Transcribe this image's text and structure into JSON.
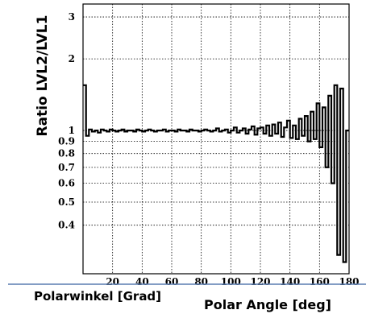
{
  "chart_data": {
    "type": "line",
    "title": "",
    "ylabel": "Ratio LVL2/LVL1",
    "xlabel_de": "Polarwinkel [Grad]",
    "xlabel_en": "Polar Angle [deg]",
    "xlim": [
      0,
      180
    ],
    "ylim": [
      0.25,
      3.4
    ],
    "y_scale": "log",
    "grid": true,
    "x_ticks": [
      20,
      40,
      60,
      80,
      100,
      120,
      140,
      160,
      180
    ],
    "y_ticks": [
      {
        "value": 3,
        "label": "3"
      },
      {
        "value": 2,
        "label": "2"
      },
      {
        "value": 1,
        "label": "1"
      },
      {
        "value": 0.9,
        "label": "0.9"
      },
      {
        "value": 0.8,
        "label": "0.8"
      },
      {
        "value": 0.7,
        "label": "0.7"
      },
      {
        "value": 0.6,
        "label": "0.6"
      },
      {
        "value": 0.5,
        "label": "0.5"
      },
      {
        "value": 0.4,
        "label": "0.4"
      }
    ],
    "x": [
      0,
      2,
      4,
      6,
      8,
      10,
      12,
      14,
      16,
      18,
      20,
      22,
      24,
      26,
      28,
      30,
      32,
      34,
      36,
      38,
      40,
      42,
      44,
      46,
      48,
      50,
      52,
      54,
      56,
      58,
      60,
      62,
      64,
      66,
      68,
      70,
      72,
      74,
      76,
      78,
      80,
      82,
      84,
      86,
      88,
      90,
      92,
      94,
      96,
      98,
      100,
      102,
      104,
      106,
      108,
      110,
      112,
      114,
      116,
      118,
      120,
      122,
      124,
      126,
      128,
      130,
      132,
      134,
      136,
      138,
      140,
      142,
      144,
      146,
      148,
      150,
      152,
      154,
      156,
      158,
      160,
      162,
      164,
      166,
      168,
      170,
      172,
      174,
      176,
      178,
      180
    ],
    "series": [
      {
        "values": [
          1.55,
          0.95,
          1.01,
          0.99,
          1.0,
          0.98,
          1.01,
          1.0,
          0.99,
          1.01,
          1.0,
          0.99,
          1.0,
          1.01,
          0.99,
          1.0,
          1.0,
          0.99,
          1.01,
          1.0,
          0.99,
          1.0,
          1.01,
          1.0,
          0.99,
          1.0,
          1.0,
          1.01,
          0.99,
          1.0,
          1.0,
          0.99,
          1.01,
          1.0,
          1.0,
          0.99,
          1.01,
          1.0,
          1.0,
          0.99,
          1.0,
          1.01,
          1.0,
          0.99,
          1.0,
          1.02,
          0.99,
          1.0,
          1.01,
          0.98,
          1.0,
          1.03,
          0.98,
          1.0,
          1.02,
          0.97,
          1.01,
          1.04,
          0.96,
          1.02,
          1.03,
          0.97,
          1.05,
          0.95,
          1.06,
          0.97,
          1.08,
          0.94,
          1.03,
          1.1,
          0.93,
          1.05,
          0.92,
          1.12,
          0.95,
          1.15,
          0.9,
          1.2,
          0.92,
          1.3,
          0.85,
          1.25,
          0.7,
          1.4,
          0.6,
          1.55,
          0.3,
          1.5,
          0.28,
          1.0,
          1.0
        ]
      }
    ]
  }
}
